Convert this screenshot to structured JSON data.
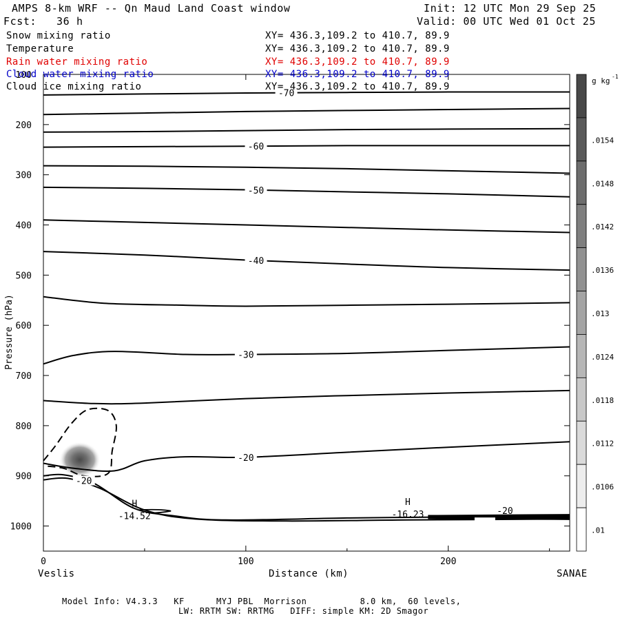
{
  "header": {
    "title": "AMPS 8-km WRF -- Qn Maud Land Coast window",
    "init": "Init: 12 UTC Mon 29 Sep 25",
    "forecast": "Fcst:   36 h",
    "valid": "Valid: 00 UTC Wed 01 Oct 25"
  },
  "fields": [
    {
      "name": "Snow mixing ratio",
      "xy": "XY= 436.3,109.2 to 410.7, 89.9",
      "color": "#000000"
    },
    {
      "name": "Temperature",
      "xy": "XY= 436.3,109.2 to 410.7, 89.9",
      "color": "#000000"
    },
    {
      "name": "Rain water mixing ratio",
      "xy": "XY= 436.3,109.2 to 410.7, 89.9",
      "color": "#e00000"
    },
    {
      "name": "Cloud water mixing ratio",
      "xy": "XY= 436.3,109.2 to 410.7, 89.9",
      "color": "#0000c8"
    },
    {
      "name": "Cloud ice mixing ratio",
      "xy": "XY= 436.3,109.2 to 410.7, 89.9",
      "color": "#000000"
    }
  ],
  "footer": {
    "line1": "Model Info: V4.3.3   KF      MYJ PBL  Morrison          8.0 km,  60 levels,",
    "line2": "LW: RRTM SW: RRTMG   DIFF: simple KM: 2D Smagor"
  },
  "chart_data": {
    "type": "contour",
    "xlabel": "Distance (km)",
    "ylabel": "Pressure (hPa)",
    "xlim": [
      0,
      260
    ],
    "ylim": [
      1050,
      100
    ],
    "x_ticks": [
      0,
      100,
      200
    ],
    "y_ticks": [
      100,
      200,
      300,
      400,
      500,
      600,
      700,
      800,
      900,
      1000
    ],
    "left_endpoint": "Veslis",
    "right_endpoint": "SANAE",
    "colorbar": {
      "unit": "g kg",
      "unit_exp": "-1",
      "labels": [
        ".0154",
        ".0148",
        ".0142",
        ".0136",
        ".013",
        ".0124",
        ".0118",
        ".0112",
        ".0106",
        ".01"
      ]
    },
    "temperature_contours": [
      {
        "label": "-70",
        "points": [
          [
            0,
            141
          ],
          [
            50,
            139
          ],
          [
            100,
            137
          ],
          [
            150,
            136
          ],
          [
            200,
            135
          ],
          [
            260,
            135
          ]
        ]
      },
      {
        "label": "",
        "points": [
          [
            0,
            180
          ],
          [
            50,
            177
          ],
          [
            100,
            174
          ],
          [
            150,
            172
          ],
          [
            200,
            170
          ],
          [
            260,
            168
          ]
        ]
      },
      {
        "label": "",
        "points": [
          [
            0,
            215
          ],
          [
            50,
            214
          ],
          [
            100,
            212
          ],
          [
            150,
            210
          ],
          [
            200,
            209
          ],
          [
            260,
            208
          ]
        ]
      },
      {
        "label": "-60",
        "points": [
          [
            0,
            245
          ],
          [
            50,
            244
          ],
          [
            100,
            243
          ],
          [
            150,
            242
          ],
          [
            200,
            242
          ],
          [
            260,
            242
          ]
        ]
      },
      {
        "label": "",
        "points": [
          [
            0,
            282
          ],
          [
            50,
            283
          ],
          [
            100,
            285
          ],
          [
            150,
            288
          ],
          [
            200,
            292
          ],
          [
            260,
            297
          ]
        ]
      },
      {
        "label": "-50",
        "points": [
          [
            0,
            325
          ],
          [
            50,
            327
          ],
          [
            100,
            330
          ],
          [
            150,
            334
          ],
          [
            200,
            338
          ],
          [
            260,
            344
          ]
        ]
      },
      {
        "label": "",
        "points": [
          [
            0,
            390
          ],
          [
            50,
            395
          ],
          [
            100,
            400
          ],
          [
            150,
            405
          ],
          [
            200,
            410
          ],
          [
            260,
            415
          ]
        ]
      },
      {
        "label": "-40",
        "points": [
          [
            0,
            453
          ],
          [
            50,
            460
          ],
          [
            100,
            470
          ],
          [
            150,
            478
          ],
          [
            200,
            485
          ],
          [
            260,
            490
          ]
        ]
      },
      {
        "label": "",
        "points": [
          [
            0,
            543
          ],
          [
            30,
            556
          ],
          [
            70,
            560
          ],
          [
            100,
            562
          ],
          [
            150,
            560
          ],
          [
            200,
            558
          ],
          [
            260,
            555
          ]
        ]
      },
      {
        "label": "-30",
        "points": [
          [
            0,
            677
          ],
          [
            15,
            660
          ],
          [
            35,
            652
          ],
          [
            70,
            658
          ],
          [
            100,
            658
          ],
          [
            150,
            656
          ],
          [
            200,
            650
          ],
          [
            260,
            643
          ]
        ]
      },
      {
        "label": "",
        "points": [
          [
            0,
            750
          ],
          [
            25,
            756
          ],
          [
            50,
            755
          ],
          [
            100,
            746
          ],
          [
            150,
            740
          ],
          [
            200,
            735
          ],
          [
            260,
            730
          ]
        ]
      },
      {
        "label": "-20",
        "points": [
          [
            0,
            875
          ],
          [
            15,
            885
          ],
          [
            35,
            890
          ],
          [
            50,
            870
          ],
          [
            70,
            862
          ],
          [
            100,
            863
          ],
          [
            150,
            853
          ],
          [
            200,
            843
          ],
          [
            260,
            832
          ]
        ]
      },
      {
        "label": "-20",
        "points": [
          [
            0,
            900
          ],
          [
            10,
            898
          ],
          [
            25,
            915
          ],
          [
            45,
            965
          ],
          [
            65,
            980
          ],
          [
            90,
            988
          ],
          [
            150,
            984
          ],
          [
            200,
            982
          ],
          [
            260,
            980
          ]
        ]
      },
      {
        "label": "",
        "points": [
          [
            0,
            908
          ],
          [
            12,
            905
          ],
          [
            28,
            925
          ],
          [
            50,
            968
          ],
          [
            75,
            986
          ],
          [
            120,
            990
          ],
          [
            180,
            988
          ],
          [
            260,
            986
          ]
        ]
      }
    ],
    "cloud_water_contour": {
      "style": "dashed",
      "label": "",
      "points": [
        [
          0,
          870
        ],
        [
          6,
          840
        ],
        [
          14,
          795
        ],
        [
          22,
          768
        ],
        [
          32,
          770
        ],
        [
          36,
          800
        ],
        [
          34,
          850
        ],
        [
          32,
          895
        ],
        [
          20,
          900
        ],
        [
          10,
          885
        ],
        [
          0,
          880
        ]
      ]
    },
    "snow_maximum": {
      "x": 18,
      "p": 868,
      "value": 0.0154
    },
    "highs": [
      {
        "label": "H",
        "value": "-14.52",
        "x": 45,
        "p": 975
      },
      {
        "label": "H",
        "value": "-16.23",
        "x": 180,
        "p": 972
      }
    ]
  }
}
